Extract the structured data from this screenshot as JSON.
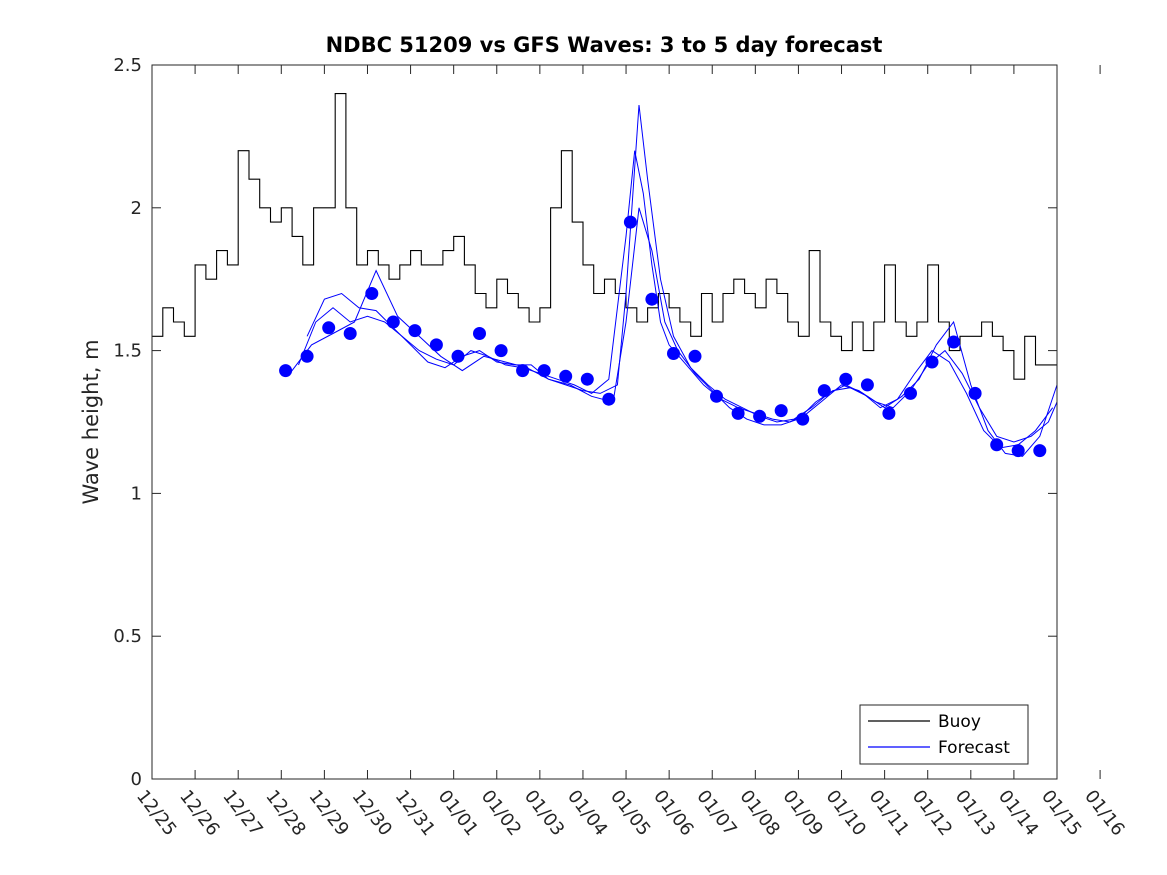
{
  "chart_data": {
    "type": "line",
    "title": "NDBC 51209 vs GFS Waves: 3 to 5 day forecast",
    "xlabel": "",
    "ylabel": "Wave height, m",
    "xlim": [
      0,
      21
    ],
    "ylim": [
      0,
      2.5
    ],
    "x_tick_labels": [
      "12/25",
      "12/26",
      "12/27",
      "12/28",
      "12/29",
      "12/30",
      "12/31",
      "01/01",
      "01/02",
      "01/03",
      "01/04",
      "01/05",
      "01/06",
      "01/07",
      "01/08",
      "01/09",
      "01/10",
      "01/11",
      "01/12",
      "01/13",
      "01/14",
      "01/15",
      "01/16"
    ],
    "y_ticks": [
      0,
      0.5,
      1,
      1.5,
      2,
      2.5
    ],
    "y_tick_labels": [
      "0",
      "0.5",
      "1",
      "1.5",
      "2",
      "2.5"
    ],
    "legend": {
      "position": "bottom-right",
      "entries": [
        "Buoy",
        "Forecast"
      ]
    },
    "colors": {
      "buoy": "#000000",
      "forecast": "#0000ff"
    },
    "buoy": {
      "name": "Buoy",
      "x": [
        0.0,
        0.25,
        0.5,
        0.75,
        1.0,
        1.25,
        1.5,
        1.75,
        2.0,
        2.25,
        2.5,
        2.75,
        3.0,
        3.25,
        3.5,
        3.75,
        4.0,
        4.25,
        4.5,
        4.75,
        5.0,
        5.25,
        5.5,
        5.75,
        6.0,
        6.25,
        6.5,
        6.75,
        7.0,
        7.25,
        7.5,
        7.75,
        8.0,
        8.25,
        8.5,
        8.75,
        9.0,
        9.25,
        9.5,
        9.75,
        10.0,
        10.25,
        10.5,
        10.75,
        11.0,
        11.25,
        11.5,
        11.75,
        12.0,
        12.25,
        12.5,
        12.75,
        13.0,
        13.25,
        13.5,
        13.75,
        14.0,
        14.25,
        14.5,
        14.75,
        15.0,
        15.25,
        15.5,
        15.75,
        16.0,
        16.25,
        16.5,
        16.75,
        17.0,
        17.25,
        17.5,
        17.75,
        18.0,
        18.25,
        18.5,
        18.75,
        19.0,
        19.25,
        19.5,
        19.75,
        20.0,
        20.25,
        20.5,
        20.75,
        21.0
      ],
      "values": [
        1.55,
        1.65,
        1.6,
        1.55,
        1.8,
        1.75,
        1.85,
        1.8,
        2.2,
        2.1,
        2.0,
        1.95,
        2.0,
        1.9,
        1.8,
        2.0,
        2.0,
        2.4,
        2.0,
        1.8,
        1.85,
        1.8,
        1.75,
        1.8,
        1.85,
        1.8,
        1.8,
        1.85,
        1.9,
        1.8,
        1.7,
        1.65,
        1.75,
        1.7,
        1.65,
        1.6,
        1.65,
        2.0,
        2.2,
        1.95,
        1.8,
        1.7,
        1.75,
        1.7,
        1.65,
        1.6,
        1.65,
        1.7,
        1.65,
        1.6,
        1.55,
        1.7,
        1.6,
        1.7,
        1.75,
        1.7,
        1.65,
        1.75,
        1.7,
        1.6,
        1.55,
        1.85,
        1.6,
        1.55,
        1.5,
        1.6,
        1.5,
        1.6,
        1.8,
        1.6,
        1.55,
        1.6,
        1.8,
        1.6,
        1.5,
        1.55,
        1.55,
        1.6,
        1.55,
        1.5,
        1.4,
        1.55,
        1.45,
        1.45,
        null
      ]
    },
    "forecast": {
      "name": "Forecast",
      "markers": {
        "x": [
          3.1,
          3.6,
          4.1,
          4.6,
          5.1,
          5.6,
          6.1,
          6.6,
          7.1,
          7.6,
          8.1,
          8.6,
          9.1,
          9.6,
          10.1,
          10.6,
          11.1,
          11.6,
          12.1,
          12.6,
          13.1,
          13.6,
          14.1,
          14.6,
          15.1,
          15.6,
          16.1,
          16.6,
          17.1,
          17.6,
          18.1,
          18.6,
          19.1,
          19.6,
          20.1,
          20.6
        ],
        "values": [
          1.43,
          1.48,
          1.58,
          1.56,
          1.7,
          1.6,
          1.57,
          1.52,
          1.48,
          1.56,
          1.5,
          1.43,
          1.43,
          1.41,
          1.4,
          1.33,
          1.95,
          1.68,
          1.49,
          1.48,
          1.34,
          1.28,
          1.27,
          1.29,
          1.26,
          1.36,
          1.4,
          1.38,
          1.28,
          1.35,
          1.46,
          1.53,
          1.35,
          1.17,
          1.15,
          1.15
        ]
      },
      "lines": [
        {
          "x": [
            3.4,
            3.8,
            4.2,
            4.6,
            5.0,
            5.4,
            5.8,
            6.2,
            6.6,
            7.0,
            7.4,
            7.8,
            8.2,
            8.6,
            9.0,
            9.4,
            9.8,
            10.2,
            10.6,
            11.0,
            11.2,
            11.4,
            11.6,
            11.8,
            12.0,
            12.4,
            12.8,
            13.2,
            13.6,
            14.0,
            14.4,
            14.8,
            15.2,
            15.6,
            16.0,
            16.4,
            16.8,
            17.2,
            17.6,
            18.0,
            18.4,
            18.8,
            19.2,
            19.6,
            20.0,
            20.4,
            20.8,
            21.0
          ],
          "values": [
            1.45,
            1.6,
            1.65,
            1.6,
            1.62,
            1.6,
            1.55,
            1.5,
            1.47,
            1.45,
            1.5,
            1.48,
            1.45,
            1.44,
            1.42,
            1.4,
            1.38,
            1.35,
            1.4,
            1.9,
            2.2,
            2.05,
            1.8,
            1.6,
            1.52,
            1.45,
            1.38,
            1.33,
            1.3,
            1.28,
            1.26,
            1.25,
            1.28,
            1.33,
            1.38,
            1.36,
            1.32,
            1.3,
            1.36,
            1.45,
            1.5,
            1.42,
            1.3,
            1.2,
            1.18,
            1.2,
            1.25,
            1.32
          ]
        },
        {
          "x": [
            3.6,
            4.0,
            4.4,
            4.8,
            5.2,
            5.6,
            6.0,
            6.4,
            6.8,
            7.2,
            7.6,
            8.0,
            8.4,
            8.8,
            9.2,
            9.6,
            10.0,
            10.4,
            10.8,
            11.0,
            11.3,
            11.5,
            11.8,
            12.1,
            12.5,
            12.9,
            13.3,
            13.7,
            14.1,
            14.5,
            14.9,
            15.3,
            15.7,
            16.1,
            16.5,
            16.9,
            17.3,
            17.7,
            18.1,
            18.5,
            18.9,
            19.3,
            19.7,
            20.1,
            20.5,
            20.9
          ],
          "values": [
            1.55,
            1.68,
            1.7,
            1.65,
            1.64,
            1.58,
            1.52,
            1.46,
            1.44,
            1.48,
            1.5,
            1.46,
            1.45,
            1.45,
            1.4,
            1.38,
            1.36,
            1.35,
            1.38,
            1.7,
            2.36,
            2.1,
            1.75,
            1.55,
            1.44,
            1.38,
            1.33,
            1.3,
            1.27,
            1.25,
            1.26,
            1.3,
            1.35,
            1.38,
            1.35,
            1.3,
            1.33,
            1.42,
            1.5,
            1.46,
            1.35,
            1.22,
            1.16,
            1.17,
            1.22,
            1.3
          ]
        },
        {
          "x": [
            3.2,
            3.7,
            4.2,
            4.7,
            5.2,
            5.7,
            6.2,
            6.7,
            7.2,
            7.7,
            8.2,
            8.7,
            9.2,
            9.7,
            10.2,
            10.7,
            11.0,
            11.3,
            11.6,
            11.9,
            12.2,
            12.6,
            13.0,
            13.4,
            13.8,
            14.2,
            14.6,
            15.0,
            15.4,
            15.8,
            16.2,
            16.6,
            17.0,
            17.4,
            17.8,
            18.2,
            18.6,
            19.0,
            19.4,
            19.8,
            20.2,
            20.6,
            21.0
          ],
          "values": [
            1.42,
            1.52,
            1.56,
            1.6,
            1.78,
            1.62,
            1.55,
            1.48,
            1.43,
            1.48,
            1.46,
            1.44,
            1.4,
            1.38,
            1.34,
            1.32,
            1.6,
            2.0,
            1.85,
            1.6,
            1.5,
            1.42,
            1.36,
            1.3,
            1.26,
            1.24,
            1.24,
            1.26,
            1.32,
            1.36,
            1.37,
            1.34,
            1.3,
            1.34,
            1.4,
            1.52,
            1.6,
            1.38,
            1.22,
            1.14,
            1.13,
            1.2,
            1.38
          ]
        }
      ]
    }
  }
}
